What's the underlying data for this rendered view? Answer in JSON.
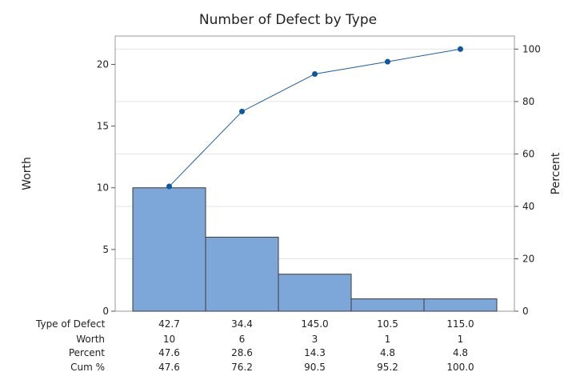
{
  "chart_data": {
    "type": "bar",
    "title": "Number of Defect by Type",
    "ylabel": "Worth",
    "y2label": "Percent",
    "categories": [
      "42.7",
      "34.4",
      "145.0",
      "10.5",
      "115.0"
    ],
    "values": [
      10,
      6,
      3,
      1,
      1
    ],
    "cumulative_percent_line": [
      47.6,
      76.2,
      90.5,
      95.2,
      100.0
    ],
    "ylim": [
      0,
      22.3
    ],
    "y2lim": [
      0,
      105
    ],
    "yticks": [
      0,
      5,
      10,
      15,
      20
    ],
    "y2ticks": [
      0,
      20,
      40,
      60,
      80,
      100
    ],
    "grid": true,
    "colors": {
      "bar": "#7da7d9",
      "bar_edge": "#3a3a3a",
      "line": "#1f5f9f",
      "marker": "#0b58a5",
      "grid": "#e3e3e3"
    },
    "table": {
      "row_labels": [
        "Type of Defect",
        "Worth",
        "Percent",
        "Cum %"
      ],
      "worth": [
        "10",
        "6",
        "3",
        "1",
        "1"
      ],
      "percent": [
        "47.6",
        "28.6",
        "14.3",
        "4.8",
        "4.8"
      ],
      "cum": [
        "47.6",
        "76.2",
        "90.5",
        "95.2",
        "100.0"
      ]
    }
  }
}
